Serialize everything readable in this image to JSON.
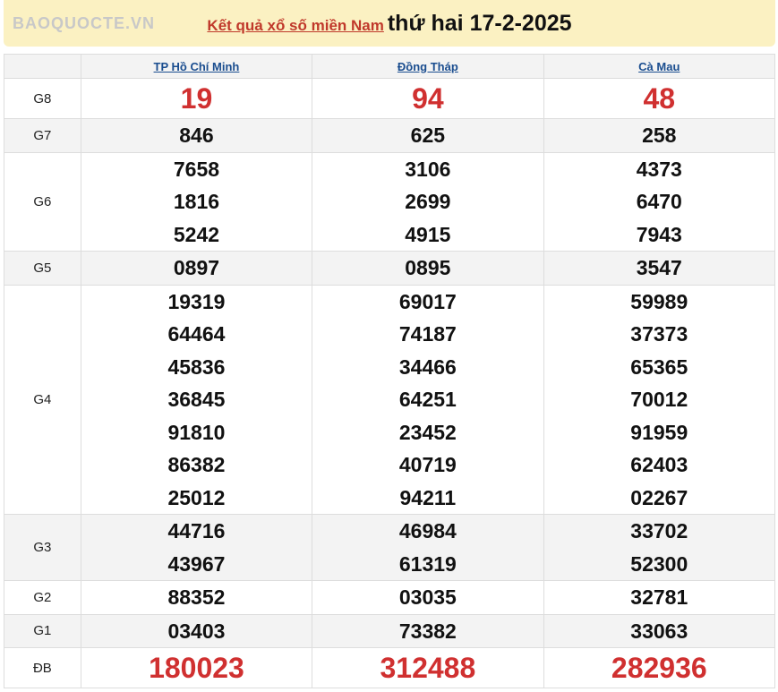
{
  "header": {
    "link": "Kết quả xổ số miền Nam",
    "date": "thứ hai 17-2-2025"
  },
  "provinces": [
    "TP Hồ Chí Minh",
    "Đồng Tháp",
    "Cà Mau"
  ],
  "rows": [
    {
      "label": "G8",
      "highlight": true,
      "values": [
        [
          "19"
        ],
        [
          "94"
        ],
        [
          "48"
        ]
      ]
    },
    {
      "label": "G7",
      "values": [
        [
          "846"
        ],
        [
          "625"
        ],
        [
          "258"
        ]
      ]
    },
    {
      "label": "G6",
      "values": [
        [
          "7658",
          "1816",
          "5242"
        ],
        [
          "3106",
          "2699",
          "4915"
        ],
        [
          "4373",
          "6470",
          "7943"
        ]
      ]
    },
    {
      "label": "G5",
      "values": [
        [
          "0897"
        ],
        [
          "0895"
        ],
        [
          "3547"
        ]
      ]
    },
    {
      "label": "G4",
      "values": [
        [
          "19319",
          "64464",
          "45836",
          "36845",
          "91810",
          "86382",
          "25012"
        ],
        [
          "69017",
          "74187",
          "34466",
          "64251",
          "23452",
          "40719",
          "94211"
        ],
        [
          "59989",
          "37373",
          "65365",
          "70012",
          "91959",
          "62403",
          "02267"
        ]
      ]
    },
    {
      "label": "G3",
      "values": [
        [
          "44716",
          "43967"
        ],
        [
          "46984",
          "61319"
        ],
        [
          "33702",
          "52300"
        ]
      ]
    },
    {
      "label": "G2",
      "values": [
        [
          "88352"
        ],
        [
          "03035"
        ],
        [
          "32781"
        ]
      ]
    },
    {
      "label": "G1",
      "values": [
        [
          "03403"
        ],
        [
          "73382"
        ],
        [
          "33063"
        ]
      ]
    },
    {
      "label": "ĐB",
      "highlight": true,
      "values": [
        [
          "180023"
        ],
        [
          "312488"
        ],
        [
          "282936"
        ]
      ]
    }
  ],
  "watermark": "BAOQUOCTE.VN",
  "colors": {
    "prize_red": "#d03030",
    "link_blue": "#1a4d8f",
    "title_bg": "#fbf1c2"
  }
}
